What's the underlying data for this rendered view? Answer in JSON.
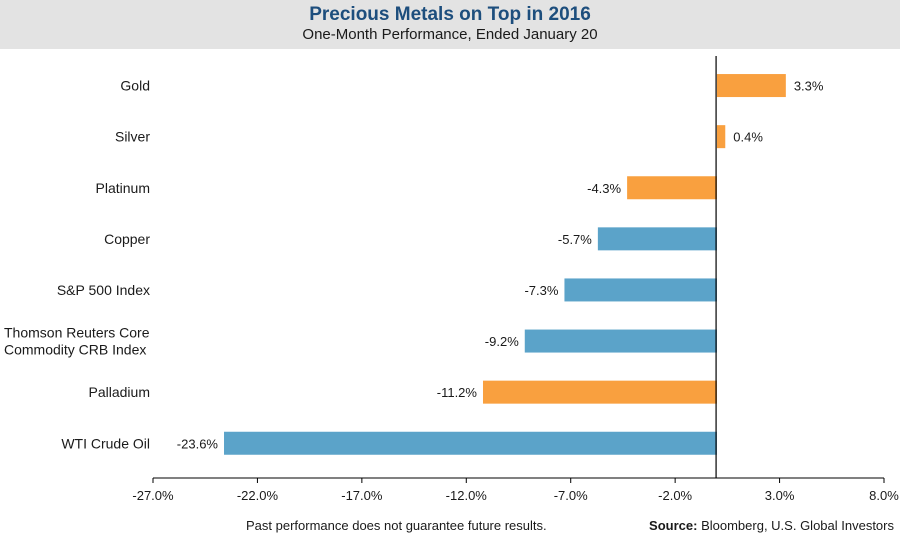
{
  "header": {
    "title": "Precious Metals on Top in 2016",
    "subtitle": "One-Month Performance, Ended January 20"
  },
  "footer": {
    "disclaimer": "Past performance does not guarantee future results.",
    "source_label": "Source:",
    "source_text": "Bloomberg, U.S. Global Investors"
  },
  "colors": {
    "precious": "#f9a03f",
    "other": "#5ba3c9",
    "axis": "#000000",
    "header_bg": "#e3e3e3",
    "title": "#1d4e7d"
  },
  "chart_data": {
    "type": "bar",
    "orientation": "horizontal",
    "categories": [
      [
        "Gold"
      ],
      [
        "Silver"
      ],
      [
        "Platinum"
      ],
      [
        "Copper"
      ],
      [
        "S&P 500 Index"
      ],
      [
        "Thomson Reuters Core",
        "Commodity CRB Index"
      ],
      [
        "Palladium"
      ],
      [
        "WTI Crude Oil"
      ]
    ],
    "values": [
      3.3,
      0.4,
      -4.3,
      -5.7,
      -7.3,
      -9.2,
      -11.2,
      -23.6
    ],
    "value_labels": [
      "3.3%",
      "0.4%",
      "-4.3%",
      "-5.7%",
      "-7.3%",
      "-9.2%",
      "-11.2%",
      "-23.6%"
    ],
    "bar_groups": [
      "precious",
      "precious",
      "precious",
      "other",
      "other",
      "other",
      "precious",
      "other"
    ],
    "xlim": [
      -27.0,
      8.0
    ],
    "xticks": [
      -27.0,
      -22.0,
      -17.0,
      -12.0,
      -7.0,
      -2.0,
      3.0,
      8.0
    ],
    "xtick_labels": [
      "-27.0%",
      "-22.0%",
      "-17.0%",
      "-12.0%",
      "-7.0%",
      "-2.0%",
      "3.0%",
      "8.0%"
    ],
    "zero_line_at": -0.04,
    "grid": false,
    "legend": "none"
  }
}
